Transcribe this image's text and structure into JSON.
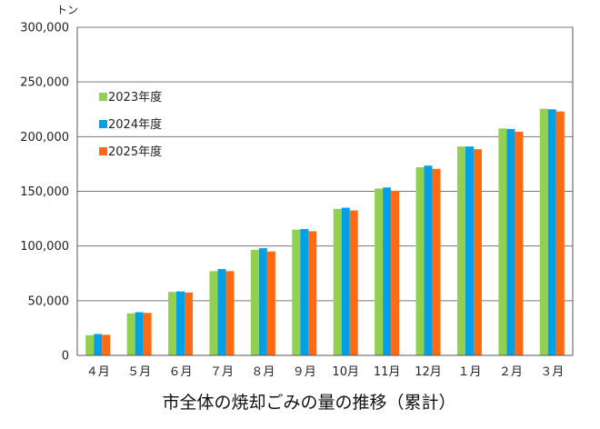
{
  "chart_data": {
    "type": "bar",
    "title": "市全体の焼却ごみの量の推移（累計）",
    "ylabel": "トン",
    "xlabel": "",
    "ylim": [
      0,
      300000
    ],
    "yticks": [
      "0",
      "50,000",
      "100,000",
      "150,000",
      "200,000",
      "250,000",
      "300,000"
    ],
    "ytick_values": [
      0,
      50000,
      100000,
      150000,
      200000,
      250000,
      300000
    ],
    "grid": true,
    "legend_position": "top-left",
    "categories": [
      "４月",
      "５月",
      "６月",
      "７月",
      "８月",
      "９月",
      "10月",
      "11月",
      "12月",
      "１月",
      "２月",
      "３月"
    ],
    "series": [
      {
        "name": "2023年度",
        "color": "#92d050",
        "values": [
          18500,
          38500,
          58000,
          77000,
          96500,
          115000,
          134000,
          152500,
          172000,
          191000,
          207500,
          225500
        ]
      },
      {
        "name": "2024年度",
        "color": "#00a0e9",
        "values": [
          19500,
          39500,
          58500,
          79000,
          98000,
          115500,
          135000,
          153500,
          173500,
          191000,
          207000,
          225000
        ]
      },
      {
        "name": "2025年度",
        "color": "#ff6a14",
        "values": [
          18800,
          38800,
          57500,
          77000,
          95000,
          113500,
          132500,
          150500,
          170500,
          188500,
          204500,
          223000
        ]
      }
    ]
  }
}
